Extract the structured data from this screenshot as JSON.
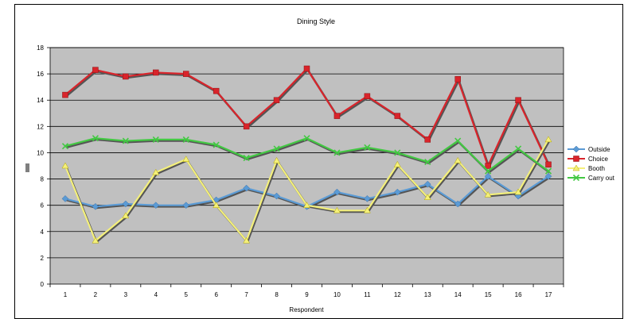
{
  "chart_data": {
    "type": "line",
    "title": "Dining Style",
    "xlabel": "Respondent",
    "ylabel": "",
    "categories": [
      "1",
      "2",
      "3",
      "4",
      "5",
      "6",
      "7",
      "8",
      "9",
      "10",
      "11",
      "12",
      "13",
      "14",
      "15",
      "16",
      "17"
    ],
    "ylim": [
      0,
      18
    ],
    "yticks": [
      "0",
      "2",
      "4",
      "6",
      "8",
      "10",
      "12",
      "14",
      "16",
      "18"
    ],
    "grid": true,
    "legend_position": "right",
    "plot_background": "#c0c0c0",
    "series": [
      {
        "name": "Outside",
        "color": "#5b9bd5",
        "marker": "diamond",
        "values": [
          6.5,
          5.9,
          6.1,
          6.0,
          6.0,
          6.4,
          7.3,
          6.7,
          5.9,
          7.0,
          6.5,
          7.0,
          7.6,
          6.1,
          8.2,
          6.7,
          8.2
        ]
      },
      {
        "name": "Choice",
        "color": "#d9242b",
        "marker": "square",
        "values": [
          14.4,
          16.3,
          15.8,
          16.1,
          16.0,
          14.7,
          12.0,
          14.0,
          16.4,
          12.8,
          14.3,
          12.8,
          11.0,
          15.6,
          9.0,
          14.0,
          9.1
        ]
      },
      {
        "name": "Booth",
        "color": "#f4f07a",
        "marker": "triangle",
        "values": [
          9.0,
          3.3,
          5.2,
          8.5,
          9.5,
          6.0,
          3.3,
          9.4,
          6.0,
          5.6,
          5.6,
          9.1,
          6.6,
          9.4,
          6.8,
          7.0,
          11.0
        ]
      },
      {
        "name": "Carry out",
        "color": "#43c843",
        "marker": "x",
        "values": [
          10.5,
          11.1,
          10.9,
          11.0,
          11.0,
          10.6,
          9.6,
          10.3,
          11.1,
          10.0,
          10.4,
          10.0,
          9.3,
          10.9,
          8.6,
          10.3,
          8.6
        ]
      }
    ]
  }
}
